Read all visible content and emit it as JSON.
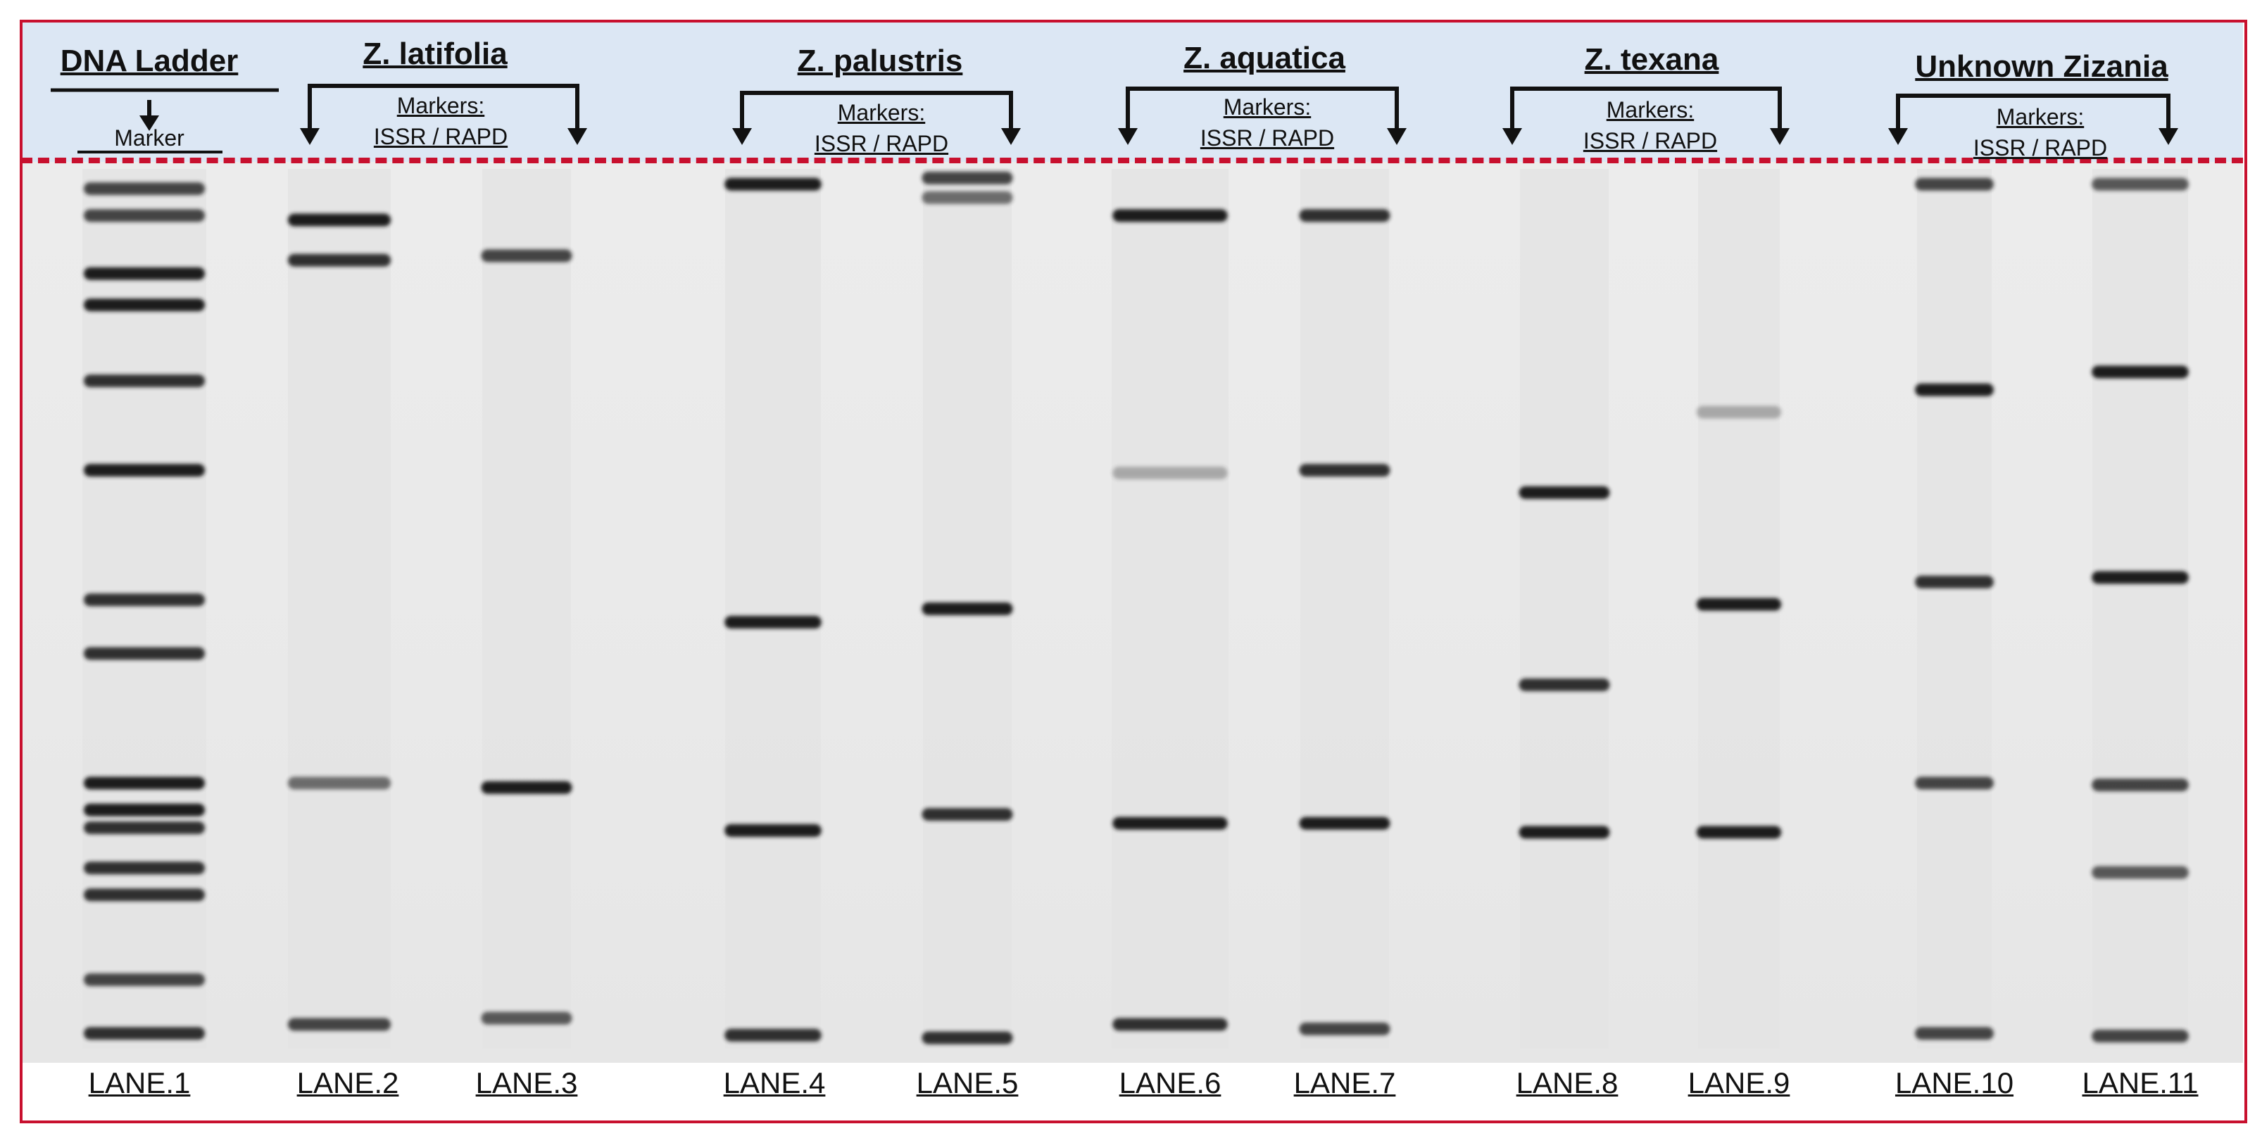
{
  "groups": [
    {
      "title": "DNA Ladder",
      "sub": "Marker"
    },
    {
      "title": "Z. latifolia",
      "markers": [
        "Markers:",
        "ISSR / RAPD"
      ]
    },
    {
      "title": "Z. palustris",
      "markers": [
        "Markers:",
        "ISSR / RAPD"
      ]
    },
    {
      "title": "Z. aquatica",
      "markers": [
        "Markers:",
        "ISSR / RAPD"
      ]
    },
    {
      "title": "Z. texana",
      "markers": [
        "Markers:",
        "ISSR / RAPD"
      ]
    },
    {
      "title": "Unknown Zizania",
      "markers": [
        "Markers:",
        "ISSR / RAPD"
      ]
    }
  ],
  "lanes": [
    {
      "label": "LANE.1",
      "bands": [
        0.03,
        0.06,
        0.125,
        0.16,
        0.245,
        0.345,
        0.49,
        0.55,
        0.695,
        0.725,
        0.745,
        0.79,
        0.82,
        0.915,
        0.975
      ],
      "intensity": [
        0.8,
        0.8,
        1,
        1,
        0.9,
        1,
        0.9,
        0.9,
        1,
        1,
        0.9,
        0.9,
        0.9,
        0.8,
        0.9
      ]
    },
    {
      "label": "LANE.2",
      "bands": [
        0.065,
        0.11,
        0.695,
        0.965
      ],
      "intensity": [
        1,
        0.9,
        0.6,
        0.8
      ]
    },
    {
      "label": "LANE.3",
      "bands": [
        0.105,
        0.7,
        0.958
      ],
      "intensity": [
        0.8,
        1,
        0.7
      ]
    },
    {
      "label": "LANE.4",
      "bands": [
        0.025,
        0.515,
        0.748,
        0.977
      ],
      "intensity": [
        1,
        1,
        1,
        0.9
      ]
    },
    {
      "label": "LANE.5",
      "bands": [
        0.018,
        0.04,
        0.5,
        0.73,
        0.98
      ],
      "intensity": [
        0.8,
        0.6,
        1,
        0.9,
        0.9
      ]
    },
    {
      "label": "LANE.6",
      "bands": [
        0.06,
        0.348,
        0.74,
        0.965
      ],
      "intensity": [
        1,
        0.3,
        1,
        0.9
      ]
    },
    {
      "label": "LANE.7",
      "bands": [
        0.06,
        0.345,
        0.74,
        0.97
      ],
      "intensity": [
        0.9,
        0.9,
        1,
        0.8
      ]
    },
    {
      "label": "LANE.8",
      "bands": [
        0.37,
        0.585,
        0.75
      ],
      "intensity": [
        1,
        0.9,
        1
      ]
    },
    {
      "label": "LANE.9",
      "bands": [
        0.28,
        0.495,
        0.75
      ],
      "intensity": [
        0.3,
        1,
        1
      ]
    },
    {
      "label": "LANE.10",
      "bands": [
        0.025,
        0.255,
        0.47,
        0.695,
        0.975
      ],
      "intensity": [
        0.8,
        1,
        0.9,
        0.8,
        0.8
      ]
    },
    {
      "label": "LANE.11",
      "bands": [
        0.025,
        0.235,
        0.465,
        0.697,
        0.795,
        0.978
      ],
      "intensity": [
        0.7,
        1,
        1,
        0.8,
        0.7,
        0.8
      ]
    }
  ],
  "colors": {
    "border": "#c8102e",
    "header": "#dce7f4",
    "gel": "#e9e9e9",
    "band": "#1c1c1c"
  }
}
